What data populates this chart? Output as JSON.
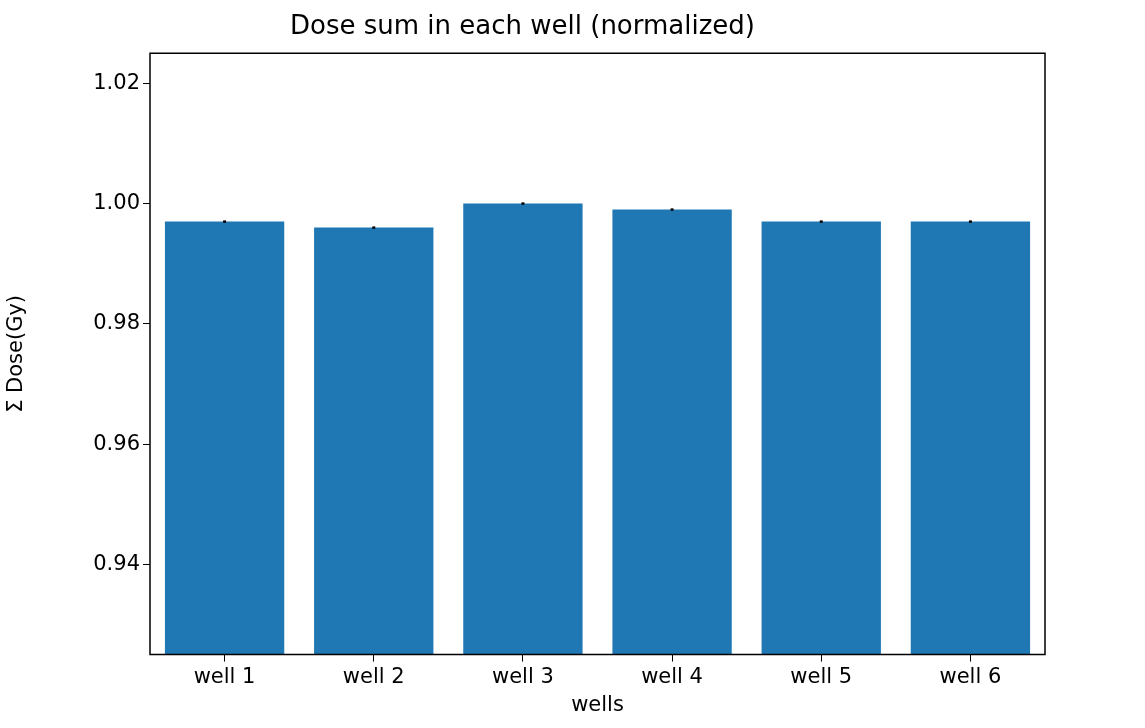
{
  "chart_data": {
    "type": "bar",
    "title": "Dose sum in each well (normalized)",
    "xlabel": "wells",
    "ylabel": "Σ Dose(Gy)",
    "categories": [
      "well 1",
      "well 2",
      "well 3",
      "well 4",
      "well 5",
      "well 6"
    ],
    "values": [
      0.997,
      0.996,
      1.0,
      0.999,
      0.997,
      0.997
    ],
    "errors": [
      0.0002,
      0.0002,
      0.0002,
      0.0002,
      0.0002,
      0.0002
    ],
    "color": "#1f77b4",
    "ylim": [
      0.925,
      1.025
    ],
    "yticks": [
      0.94,
      0.96,
      0.98,
      {
        "value": 1.0,
        "label": "1.00"
      },
      1.02
    ],
    "grid": false,
    "legend": false
  }
}
